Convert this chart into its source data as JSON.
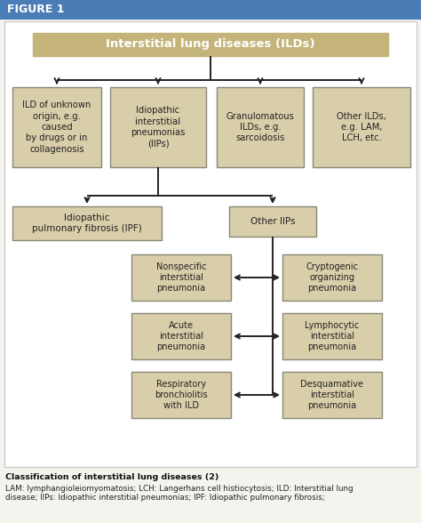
{
  "figure_label": "FIGURE 1",
  "bg_color": "#f5f3ee",
  "fig_bar_color": "#4a7db5",
  "fig_bar_text_color": "#ffffff",
  "outer_bg": "#ffffff",
  "outer_border": "#cccccc",
  "header_bg": "#c4b47a",
  "header_border": "#c4b47a",
  "header_text_color": "#ffffff",
  "box_bg": "#d9ceaa",
  "box_border": "#888877",
  "box_text_color": "#222222",
  "arrow_color": "#222222",
  "header_text": "Interstitial lung diseases (ILDs)",
  "level1_boxes": [
    "ILD of unknown\norigin, e.g.\ncaused\nby drugs or in\ncollagenosis",
    "Idiopathic\ninterstitial\npneumonias\n(IIPs)",
    "Granulomatous\nILDs, e.g.\nsarcoidosis",
    "Other ILDs,\ne.g. LAM,\nLCH, etc."
  ],
  "level2_left": "Idiopathic\npulmonary fibrosis (IPF)",
  "level2_right": "Other IIPs",
  "level3_left": [
    "Nonspecific\ninterstitial\npneumonia",
    "Acute\ninterstitial\npneumonia",
    "Respiratory\nbronchiolitis\nwith ILD"
  ],
  "level3_right": [
    "Cryptogenic\norganizing\npneumonia",
    "Lymphocytic\ninterstitial\npneumonia",
    "Desquamative\ninterstitial\npneumonia"
  ],
  "caption_bold": "Classification of interstitial lung diseases (2)",
  "caption_normal": "LAM: lymphangioleiomyomatosis; LCH: Langerhans cell histiocytosis; ILD: Interstitial lung\ndisease; IIPs: Idiopathic interstitial pneumonias; IPF: Idiopathic pulmonary fibrosis;"
}
